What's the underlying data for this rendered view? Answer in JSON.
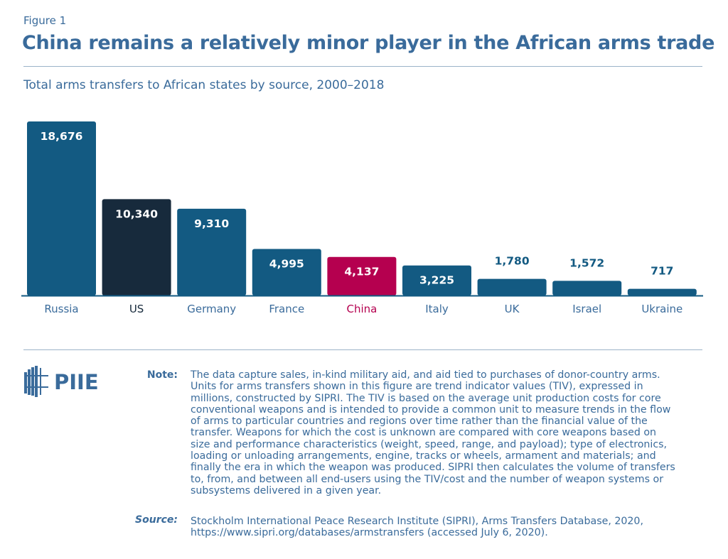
{
  "figure_label": "Figure 1",
  "title": "China remains a relatively minor player in the African arms trade",
  "chart_data": {
    "type": "bar",
    "subtitle": "Total arms transfers to African states by source, 2000–2018",
    "categories": [
      "Russia",
      "US",
      "Germany",
      "France",
      "China",
      "Italy",
      "UK",
      "Israel",
      "Ukraine"
    ],
    "values": [
      18676,
      10340,
      9310,
      4995,
      4137,
      3225,
      1780,
      1572,
      717
    ],
    "value_labels": [
      "18,676",
      "10,340",
      "9,310",
      "4,995",
      "4,137",
      "3,225",
      "1,780",
      "1,572",
      "717"
    ],
    "colors": [
      "#135a82",
      "#172a3c",
      "#135a82",
      "#135a82",
      "#b5004f",
      "#135a82",
      "#135a82",
      "#135a82",
      "#135a82"
    ],
    "label_colors": [
      "#3a6b9b",
      "#172a3c",
      "#3a6b9b",
      "#3a6b9b",
      "#b5004f",
      "#3a6b9b",
      "#3a6b9b",
      "#3a6b9b",
      "#3a6b9b"
    ],
    "ylim": [
      0,
      18676
    ],
    "grid": false
  },
  "logo": "PIIE",
  "note_label": "Note:",
  "note_lines": [
    "The data capture sales, in-kind military aid, and aid tied to purchases of donor-country arms.",
    "Units for arms transfers shown in this figure are trend indicator values (TIV), expressed in",
    "millions, constructed by SIPRI. The TIV is based on the average unit production costs for core",
    "conventional weapons and is intended to provide a common unit to measure trends in the flow",
    "of arms to particular countries and regions over time rather than the financial value of the",
    "transfer. Weapons for which the cost is unknown are compared with core weapons based on",
    "size and performance characteristics (weight, speed, range, and payload); type of electronics,",
    "loading or unloading arrangements, engine, tracks or wheels, armament and materials; and",
    "finally the era in which the weapon was produced. SIPRI then calculates the volume of transfers",
    "to, from, and between all end-users using the TIV/cost and the number of weapon systems or",
    "subsystems delivered in a given year."
  ],
  "source_label": "Source:",
  "source_lines": [
    "Stockholm International Peace Research Institute (SIPRI), Arms Transfers Database, 2020,",
    "https://www.sipri.org/databases/armstransfers (accessed July 6, 2020)."
  ]
}
